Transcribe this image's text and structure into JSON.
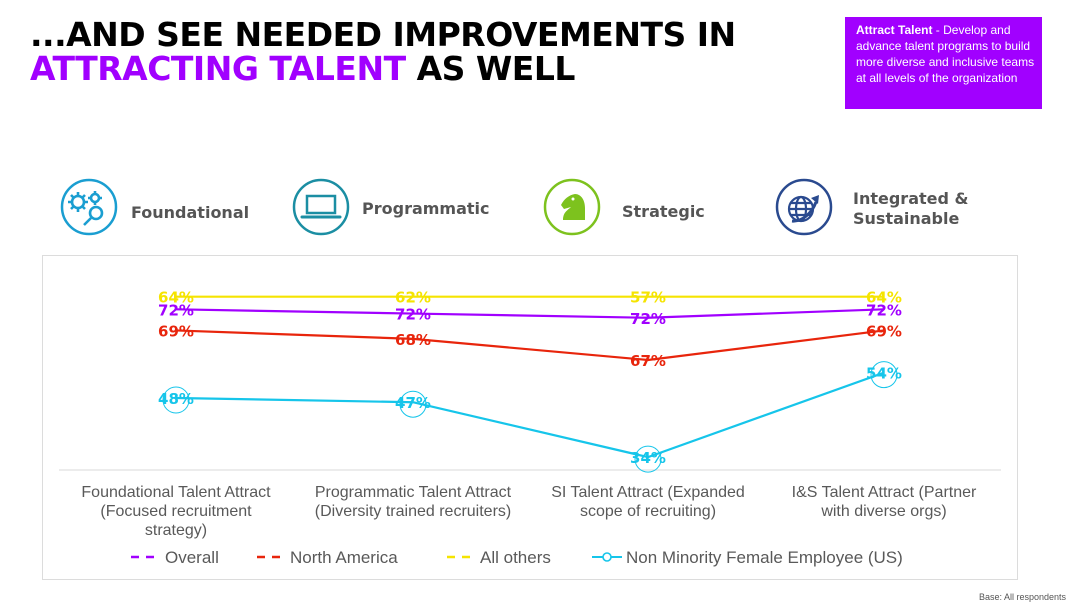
{
  "header": {
    "title_line1": "...AND SEE NEEDED IMPROVEMENTS IN",
    "title_highlight": "ATTRACTING TALENT",
    "title_rest": " AS WELL"
  },
  "callout": {
    "bold": "Attract Talent",
    "text": " - Develop and advance talent programs to build more diverse and inclusive teams at all levels of the organization"
  },
  "stages": [
    {
      "label": "Foundational",
      "icon": "gears-icon"
    },
    {
      "label": "Programmatic",
      "icon": "laptop-icon"
    },
    {
      "label": "Strategic",
      "icon": "knight-icon"
    },
    {
      "label": "Integrated & Sustainable",
      "icon": "globe-arrow-icon"
    }
  ],
  "footer": {
    "base_note": "Base: All respondents"
  },
  "colors": {
    "purple": "#a100ff",
    "red": "#e8250c",
    "yellow": "#f5e400",
    "cyan": "#16c5ea",
    "stage_teal": "#1a9ed1",
    "stage_green": "#7dc21e",
    "stage_navy": "#2a4a8f"
  },
  "chart_data": {
    "type": "line",
    "categories": [
      [
        "Foundational Talent Attract",
        "(Focused recruitment",
        "strategy)"
      ],
      [
        "Programmatic Talent Attract",
        "(Diversity trained recruiters)"
      ],
      [
        "SI Talent Attract (Expanded",
        "scope of recruiting)"
      ],
      [
        "I&S Talent Attract (Partner",
        "with diverse orgs)"
      ]
    ],
    "ylim": [
      30,
      75
    ],
    "grid": false,
    "legend_position": "bottom",
    "series": [
      {
        "name": "Overall",
        "values": [
          69,
          68,
          67,
          69
        ],
        "color": "#a100ff",
        "style": "dashed-legend"
      },
      {
        "name": "North America",
        "values": [
          64,
          62,
          57,
          64
        ],
        "color": "#e8250c",
        "style": "dashed-legend"
      },
      {
        "name": "All others",
        "values": [
          72,
          72,
          72,
          72
        ],
        "color": "#f5e400",
        "style": "dashed-legend"
      },
      {
        "name": "Non Minority Female Employee (US)",
        "values": [
          48,
          47,
          34,
          54
        ],
        "color": "#16c5ea",
        "style": "circle-marker"
      }
    ],
    "data_labels": [
      [
        "72%",
        "72%",
        "72%",
        "72%"
      ],
      [
        "69%",
        "68%",
        "67%",
        "69%"
      ],
      [
        "64%",
        "62%",
        "57%",
        "64%"
      ],
      [
        "48%",
        "47%",
        "34%",
        "54%"
      ]
    ]
  }
}
